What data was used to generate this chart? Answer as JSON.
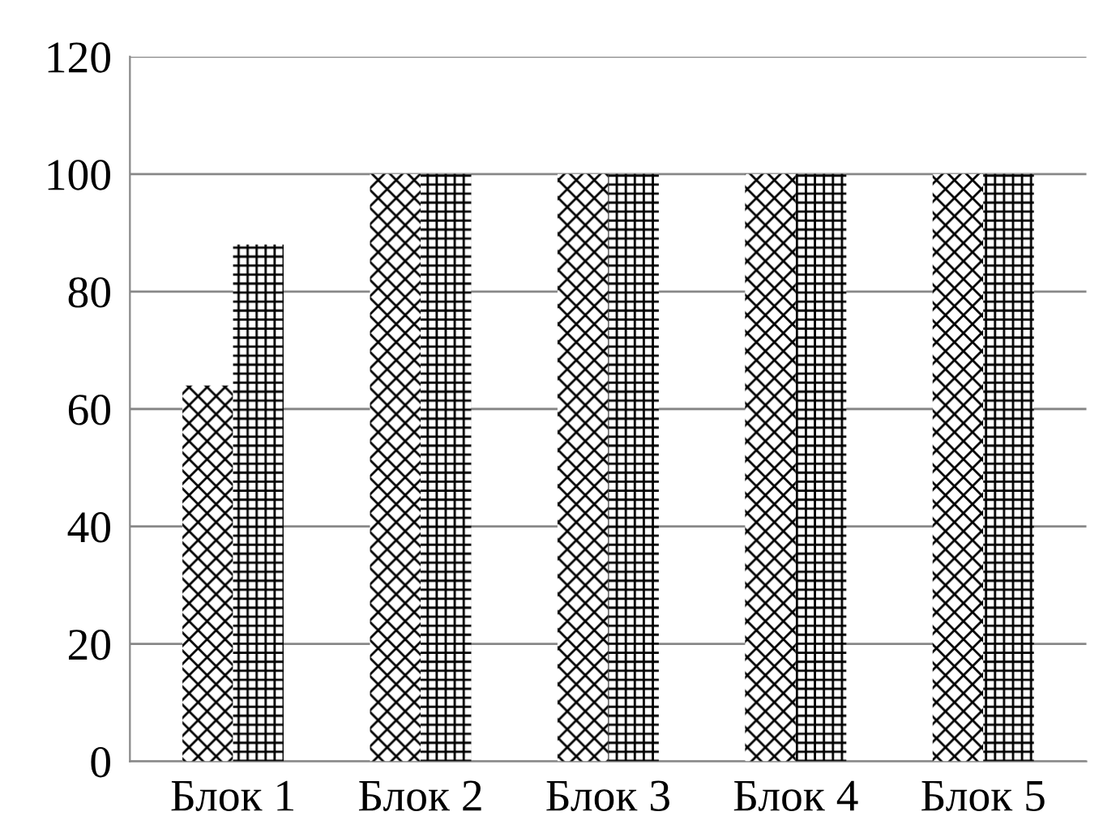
{
  "chart_data": {
    "type": "bar",
    "categories": [
      "Блок 1",
      "Блок 2",
      "Блок 3",
      "Блок 4",
      "Блок 5"
    ],
    "series": [
      {
        "color": "#000000",
        "values": [
          64,
          100,
          100,
          100,
          100
        ]
      },
      {
        "color": "#000000",
        "values": [
          88,
          100,
          100,
          100,
          100
        ]
      }
    ],
    "ylim": [
      0,
      120
    ],
    "yticks": [
      0,
      20,
      40,
      60,
      80,
      100,
      120
    ],
    "grid": "y"
  }
}
